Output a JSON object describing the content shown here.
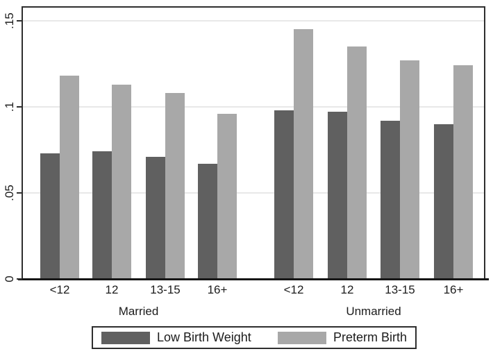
{
  "chart_data": {
    "type": "bar",
    "groups": [
      "Married",
      "Unmarried"
    ],
    "categories": [
      "<12",
      "12",
      "13-15",
      "16+"
    ],
    "series": [
      {
        "name": "Low Birth Weight",
        "color": "#606060",
        "values": [
          [
            0.073,
            0.074,
            0.071,
            0.067
          ],
          [
            0.098,
            0.097,
            0.092,
            0.09
          ]
        ]
      },
      {
        "name": "Preterm Birth",
        "color": "#a8a8a8",
        "values": [
          [
            0.118,
            0.113,
            0.108,
            0.096
          ],
          [
            0.145,
            0.135,
            0.127,
            0.124
          ]
        ]
      }
    ],
    "yticks": [
      {
        "label": "0",
        "value": 0
      },
      {
        "label": ".05",
        "value": 0.05
      },
      {
        "label": ".1",
        "value": 0.1
      },
      {
        "label": ".15",
        "value": 0.15
      }
    ],
    "ylim": [
      0,
      0.158
    ],
    "grid": "horizontal",
    "legend_position": "bottom",
    "colors": {
      "axis": "#2e2e2e",
      "gridline": "#e8e8e8",
      "text": "#1c1c1c",
      "background": "#ffffff"
    }
  }
}
